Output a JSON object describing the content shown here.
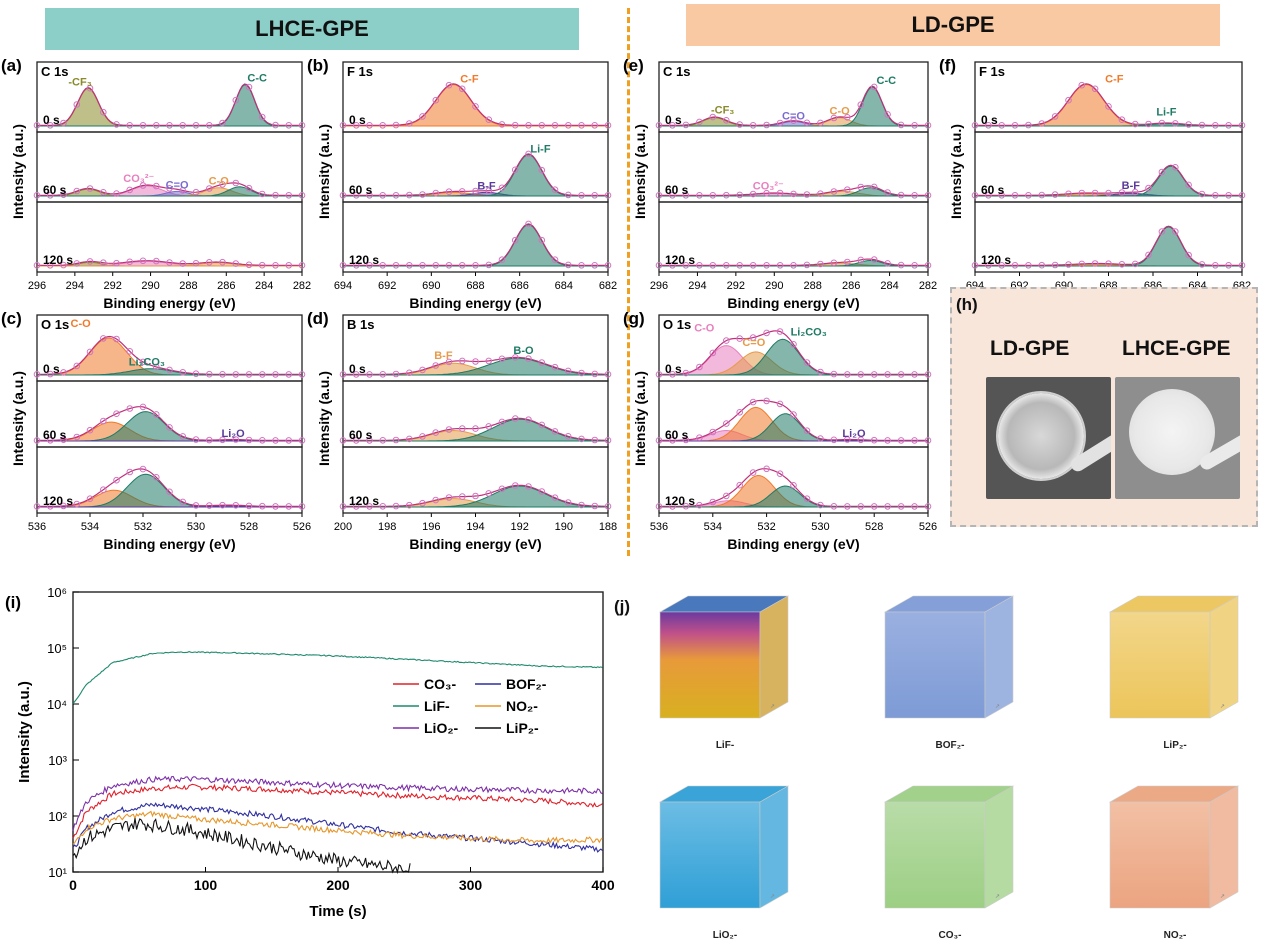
{
  "banners": {
    "left": "LHCE-GPE",
    "right": "LD-GPE",
    "left_color": "#8ccfc9",
    "right_color": "#f9c9a3"
  },
  "axis_common": {
    "xlabel": "Binding energy (eV)",
    "ylabel": "Intensity (a.u.)"
  },
  "xps_panels": [
    {
      "id": "a",
      "letter": "(a)",
      "element": "C 1s",
      "xlim": [
        296,
        282
      ],
      "ticks": [
        296,
        294,
        292,
        290,
        288,
        286,
        284,
        282
      ],
      "times": [
        "0 s",
        "60 s",
        "120 s"
      ],
      "peaks": [
        [
          {
            "name": "-CF3",
            "label": "-CF₃",
            "pos": 293.3,
            "amp": 0.82,
            "w": 0.55,
            "color": "#8a8a2a"
          },
          {
            "name": "C-C",
            "label": "C-C",
            "pos": 285.0,
            "amp": 0.9,
            "w": 0.5,
            "color": "#1f7a66"
          }
        ],
        [
          {
            "name": "CF3",
            "label": "",
            "pos": 293.3,
            "amp": 0.15,
            "w": 0.6,
            "color": "#8a8a2a"
          },
          {
            "name": "CO3",
            "label": "CO₃²⁻",
            "pos": 290.2,
            "amp": 0.22,
            "w": 0.8,
            "color": "#e87fbf"
          },
          {
            "name": "C=O",
            "label": "C=O",
            "pos": 288.6,
            "amp": 0.1,
            "w": 0.6,
            "color": "#7a6ccf"
          },
          {
            "name": "C-O",
            "label": "C-O",
            "pos": 286.4,
            "amp": 0.18,
            "w": 0.7,
            "color": "#e69a4a"
          },
          {
            "name": "C-C",
            "label": "",
            "pos": 285.3,
            "amp": 0.2,
            "w": 0.6,
            "color": "#1f7a66"
          }
        ],
        [
          {
            "name": "CF3",
            "label": "",
            "pos": 293.2,
            "amp": 0.08,
            "w": 0.6,
            "color": "#8a8a2a"
          },
          {
            "name": "CO3",
            "label": "",
            "pos": 290.2,
            "amp": 0.1,
            "w": 1.2,
            "color": "#e87fbf"
          },
          {
            "name": "C-O",
            "label": "",
            "pos": 286.5,
            "amp": 0.07,
            "w": 0.9,
            "color": "#e69a4a"
          }
        ]
      ]
    },
    {
      "id": "b",
      "letter": "(b)",
      "element": "F 1s",
      "xlim": [
        694,
        682
      ],
      "ticks": [
        694,
        692,
        690,
        688,
        686,
        684,
        682
      ],
      "times": [
        "0 s",
        "60 s",
        "120 s"
      ],
      "peaks": [
        [
          {
            "name": "C-F",
            "label": "C-F",
            "pos": 689.0,
            "amp": 0.9,
            "w": 0.8,
            "color": "#f07a2a"
          }
        ],
        [
          {
            "name": "C-F",
            "label": "",
            "pos": 689.0,
            "amp": 0.08,
            "w": 0.8,
            "color": "#f07a2a"
          },
          {
            "name": "B-F",
            "label": "B-F",
            "pos": 687.5,
            "amp": 0.08,
            "w": 0.6,
            "color": "#5a3a9a"
          },
          {
            "name": "Li-F",
            "label": "Li-F",
            "pos": 685.6,
            "amp": 0.9,
            "w": 0.6,
            "color": "#1f7a66"
          }
        ],
        [
          {
            "name": "Li-F",
            "label": "",
            "pos": 685.6,
            "amp": 0.9,
            "w": 0.6,
            "color": "#1f7a66"
          }
        ]
      ]
    },
    {
      "id": "e",
      "letter": "(e)",
      "element": "C 1s",
      "xlim": [
        296,
        282
      ],
      "ticks": [
        296,
        294,
        292,
        290,
        288,
        286,
        284,
        282
      ],
      "times": [
        "0 s",
        "60 s",
        "120 s"
      ],
      "peaks": [
        [
          {
            "name": "-CF3",
            "label": "-CF₃",
            "pos": 293.1,
            "amp": 0.18,
            "w": 0.6,
            "color": "#8a8a2a"
          },
          {
            "name": "C=O",
            "label": "C=O",
            "pos": 289.0,
            "amp": 0.1,
            "w": 0.6,
            "color": "#7a6ccf"
          },
          {
            "name": "C-O",
            "label": "C-O",
            "pos": 286.6,
            "amp": 0.18,
            "w": 0.6,
            "color": "#e69a4a"
          },
          {
            "name": "C-C",
            "label": "C-C",
            "pos": 284.9,
            "amp": 0.85,
            "w": 0.5,
            "color": "#1f7a66"
          }
        ],
        [
          {
            "name": "CO3",
            "label": "CO₃²⁻",
            "pos": 290.0,
            "amp": 0.05,
            "w": 1.0,
            "color": "#e87fbf"
          },
          {
            "name": "C-O",
            "label": "",
            "pos": 286.4,
            "amp": 0.1,
            "w": 0.8,
            "color": "#e69a4a"
          },
          {
            "name": "C-C",
            "label": "",
            "pos": 285.0,
            "amp": 0.18,
            "w": 0.6,
            "color": "#1f7a66"
          }
        ],
        [
          {
            "name": "C-O",
            "label": "",
            "pos": 286.5,
            "amp": 0.06,
            "w": 0.9,
            "color": "#e69a4a"
          },
          {
            "name": "C-C",
            "label": "",
            "pos": 285.0,
            "amp": 0.12,
            "w": 0.6,
            "color": "#1f7a66"
          }
        ]
      ]
    },
    {
      "id": "f",
      "letter": "(f)",
      "element": "F 1s",
      "xlim": [
        694,
        682
      ],
      "ticks": [
        694,
        692,
        690,
        688,
        686,
        684,
        682
      ],
      "times": [
        "0 s",
        "60 s",
        "120 s"
      ],
      "peaks": [
        [
          {
            "name": "C-F",
            "label": "C-F",
            "pos": 689.0,
            "amp": 0.9,
            "w": 0.8,
            "color": "#f07a2a"
          },
          {
            "name": "Li-F",
            "label": "Li-F",
            "pos": 685.4,
            "amp": 0.05,
            "w": 0.7,
            "color": "#1f7a66"
          }
        ],
        [
          {
            "name": "C-F",
            "label": "",
            "pos": 689.0,
            "amp": 0.05,
            "w": 0.9,
            "color": "#f07a2a"
          },
          {
            "name": "B-F",
            "label": "B-F",
            "pos": 687.0,
            "amp": 0.06,
            "w": 0.7,
            "color": "#5a3a9a"
          },
          {
            "name": "Li-F",
            "label": "",
            "pos": 685.2,
            "amp": 0.65,
            "w": 0.55,
            "color": "#1f7a66"
          }
        ],
        [
          {
            "name": "C-F",
            "label": "",
            "pos": 688.5,
            "amp": 0.04,
            "w": 1.0,
            "color": "#f07a2a"
          },
          {
            "name": "Li-F",
            "label": "",
            "pos": 685.3,
            "amp": 0.85,
            "w": 0.55,
            "color": "#1f7a66"
          }
        ]
      ]
    },
    {
      "id": "c",
      "letter": "(c)",
      "element": "O 1s",
      "xlim": [
        536,
        526
      ],
      "ticks": [
        536,
        534,
        532,
        530,
        528,
        526
      ],
      "times": [
        "0 s",
        "60 s",
        "120 s"
      ],
      "peaks": [
        [
          {
            "name": "C-O",
            "label": "C-O",
            "pos": 533.3,
            "amp": 0.88,
            "w": 0.7,
            "color": "#f07a2a"
          },
          {
            "name": "Li2CO3",
            "label": "Li₂CO₃",
            "pos": 531.7,
            "amp": 0.15,
            "w": 0.8,
            "color": "#1f7a66"
          }
        ],
        [
          {
            "name": "C-O",
            "label": "",
            "pos": 533.2,
            "amp": 0.45,
            "w": 0.7,
            "color": "#f07a2a"
          },
          {
            "name": "Li2CO3",
            "label": "",
            "pos": 531.9,
            "amp": 0.7,
            "w": 0.7,
            "color": "#1f7a66"
          },
          {
            "name": "Li2O",
            "label": "Li₂O",
            "pos": 528.6,
            "amp": 0.02,
            "w": 0.5,
            "color": "#5a3a9a"
          }
        ],
        [
          {
            "name": "C-O",
            "label": "",
            "pos": 533.1,
            "amp": 0.4,
            "w": 0.7,
            "color": "#f07a2a"
          },
          {
            "name": "Li2CO3",
            "label": "",
            "pos": 531.9,
            "amp": 0.78,
            "w": 0.7,
            "color": "#1f7a66"
          },
          {
            "name": "Li2O",
            "label": "",
            "pos": 528.8,
            "amp": 0.03,
            "w": 0.6,
            "color": "#5a3a9a"
          }
        ]
      ]
    },
    {
      "id": "d",
      "letter": "(d)",
      "element": "B 1s",
      "xlim": [
        200,
        188
      ],
      "ticks": [
        200,
        198,
        196,
        194,
        192,
        190,
        188
      ],
      "times": [
        "0 s",
        "60 s",
        "120 s"
      ],
      "peaks": [
        [
          {
            "name": "B-F",
            "label": "B-F",
            "pos": 195.0,
            "amp": 0.28,
            "w": 1.0,
            "color": "#e69a4a"
          },
          {
            "name": "B-O",
            "label": "B-O",
            "pos": 192.1,
            "amp": 0.4,
            "w": 1.3,
            "color": "#1f7a66"
          }
        ],
        [
          {
            "name": "B-F",
            "label": "",
            "pos": 195.0,
            "amp": 0.25,
            "w": 1.0,
            "color": "#e69a4a"
          },
          {
            "name": "B-O",
            "label": "",
            "pos": 192.0,
            "amp": 0.52,
            "w": 1.2,
            "color": "#1f7a66"
          }
        ],
        [
          {
            "name": "B-F",
            "label": "",
            "pos": 195.0,
            "amp": 0.2,
            "w": 1.0,
            "color": "#e69a4a"
          },
          {
            "name": "B-O",
            "label": "",
            "pos": 192.0,
            "amp": 0.5,
            "w": 1.2,
            "color": "#1f7a66"
          }
        ]
      ]
    },
    {
      "id": "g",
      "letter": "(g)",
      "element": "O 1s",
      "xlim": [
        536,
        526
      ],
      "ticks": [
        536,
        534,
        532,
        530,
        528,
        526
      ],
      "times": [
        "0 s",
        "60 s",
        "120 s"
      ],
      "peaks": [
        [
          {
            "name": "C-O",
            "label": "C-O",
            "pos": 533.5,
            "amp": 0.7,
            "w": 0.6,
            "color": "#e87fbf"
          },
          {
            "name": "C=O",
            "label": "C=O",
            "pos": 532.4,
            "amp": 0.55,
            "w": 0.6,
            "color": "#e69a4a"
          },
          {
            "name": "Li2CO3",
            "label": "Li₂CO₃",
            "pos": 531.4,
            "amp": 0.85,
            "w": 0.6,
            "color": "#1f7a66"
          }
        ],
        [
          {
            "name": "C-O",
            "label": "",
            "pos": 533.5,
            "amp": 0.25,
            "w": 0.6,
            "color": "#e87fbf"
          },
          {
            "name": "C=O",
            "label": "",
            "pos": 532.4,
            "amp": 0.8,
            "w": 0.6,
            "color": "#f07a2a"
          },
          {
            "name": "Li2CO3",
            "label": "",
            "pos": 531.3,
            "amp": 0.65,
            "w": 0.55,
            "color": "#1f7a66"
          },
          {
            "name": "Li2O",
            "label": "Li₂O",
            "pos": 528.9,
            "amp": 0.02,
            "w": 0.5,
            "color": "#5a3a9a"
          }
        ],
        [
          {
            "name": "C-O",
            "label": "",
            "pos": 533.4,
            "amp": 0.15,
            "w": 0.6,
            "color": "#e87fbf"
          },
          {
            "name": "C=O",
            "label": "",
            "pos": 532.3,
            "amp": 0.75,
            "w": 0.6,
            "color": "#f07a2a"
          },
          {
            "name": "Li2CO3",
            "label": "",
            "pos": 531.3,
            "amp": 0.5,
            "w": 0.55,
            "color": "#1f7a66"
          }
        ]
      ]
    }
  ],
  "photo_panel": {
    "letter": "(h)",
    "left_label": "LD-GPE",
    "right_label": "LHCE-GPE"
  },
  "tof_plot": {
    "letter": "(i)",
    "xlabel": "Time (s)",
    "ylabel": "Intensity (a.u.)",
    "xlim": [
      0,
      400
    ],
    "xticks": [
      0,
      100,
      200,
      300,
      400
    ],
    "yticks": [
      "10¹",
      "10²",
      "10³",
      "10⁴",
      "10⁵",
      "10⁶"
    ],
    "ylog_range": [
      1,
      6
    ]
  },
  "chart_data": {
    "type": "line",
    "title": "",
    "xlabel": "Time (s)",
    "ylabel": "Intensity (a.u.)",
    "xlim": [
      0,
      400
    ],
    "ylim": [
      10,
      1000000
    ],
    "yscale": "log",
    "series": [
      {
        "name": "CO3-",
        "label": "CO₃-",
        "color": "#e0202a",
        "points": [
          [
            0,
            40
          ],
          [
            10,
            120
          ],
          [
            30,
            250
          ],
          [
            60,
            310
          ],
          [
            90,
            330
          ],
          [
            150,
            300
          ],
          [
            200,
            260
          ],
          [
            250,
            230
          ],
          [
            300,
            210
          ],
          [
            350,
            190
          ],
          [
            400,
            160
          ]
        ]
      },
      {
        "name": "BOF2-",
        "label": "BOF₂-",
        "color": "#2f2fa0",
        "points": [
          [
            0,
            25
          ],
          [
            10,
            60
          ],
          [
            30,
            120
          ],
          [
            60,
            160
          ],
          [
            90,
            140
          ],
          [
            150,
            100
          ],
          [
            200,
            70
          ],
          [
            250,
            50
          ],
          [
            300,
            40
          ],
          [
            350,
            32
          ],
          [
            400,
            25
          ]
        ]
      },
      {
        "name": "LiF-",
        "label": "LiF-",
        "color": "#1f8a6e",
        "points": [
          [
            0,
            10000
          ],
          [
            10,
            22000
          ],
          [
            30,
            55000
          ],
          [
            60,
            80000
          ],
          [
            80,
            85000
          ],
          [
            120,
            82000
          ],
          [
            200,
            72000
          ],
          [
            250,
            63000
          ],
          [
            300,
            55000
          ],
          [
            350,
            48000
          ],
          [
            400,
            45000
          ]
        ]
      },
      {
        "name": "NO2-",
        "label": "NO₂-",
        "color": "#e6962a",
        "points": [
          [
            0,
            30
          ],
          [
            10,
            60
          ],
          [
            30,
            90
          ],
          [
            60,
            110
          ],
          [
            90,
            90
          ],
          [
            150,
            70
          ],
          [
            200,
            55
          ],
          [
            250,
            45
          ],
          [
            300,
            40
          ],
          [
            350,
            36
          ],
          [
            400,
            38
          ]
        ]
      },
      {
        "name": "LiO2-",
        "label": "LiO₂-",
        "color": "#7d2fa8",
        "points": [
          [
            0,
            60
          ],
          [
            10,
            180
          ],
          [
            30,
            350
          ],
          [
            60,
            450
          ],
          [
            90,
            460
          ],
          [
            150,
            400
          ],
          [
            200,
            350
          ],
          [
            250,
            320
          ],
          [
            300,
            300
          ],
          [
            350,
            285
          ],
          [
            400,
            280
          ]
        ]
      },
      {
        "name": "LiP2-",
        "label": "LiP₂-",
        "color": "#111111",
        "points": [
          [
            0,
            20
          ],
          [
            10,
            40
          ],
          [
            30,
            60
          ],
          [
            50,
            75
          ],
          [
            90,
            55
          ],
          [
            130,
            35
          ],
          [
            170,
            22
          ],
          [
            200,
            16
          ],
          [
            230,
            13
          ],
          [
            255,
            11
          ]
        ]
      }
    ],
    "legend_loc": "center-right"
  },
  "cube_panel": {
    "letter": "(j)",
    "cubes": [
      {
        "name": "LiF",
        "caption": "LiF-",
        "color": "#3f72b8",
        "accent": "#e8b630"
      },
      {
        "name": "BOF2",
        "caption": "BOF₂-",
        "color": "#7e9bd6",
        "accent": "#9ab0e0"
      },
      {
        "name": "LiP2",
        "caption": "LiP₂-",
        "color": "#ecc55a",
        "accent": "#f2d68a"
      },
      {
        "name": "LiO2",
        "caption": "LiO₂-",
        "color": "#2f9fd6",
        "accent": "#6cbde4"
      },
      {
        "name": "CO3",
        "caption": "CO₃-",
        "color": "#9ccf84",
        "accent": "#b9dca8"
      },
      {
        "name": "NO2",
        "caption": "NO₂-",
        "color": "#eba480",
        "accent": "#f2c0a5"
      }
    ]
  }
}
